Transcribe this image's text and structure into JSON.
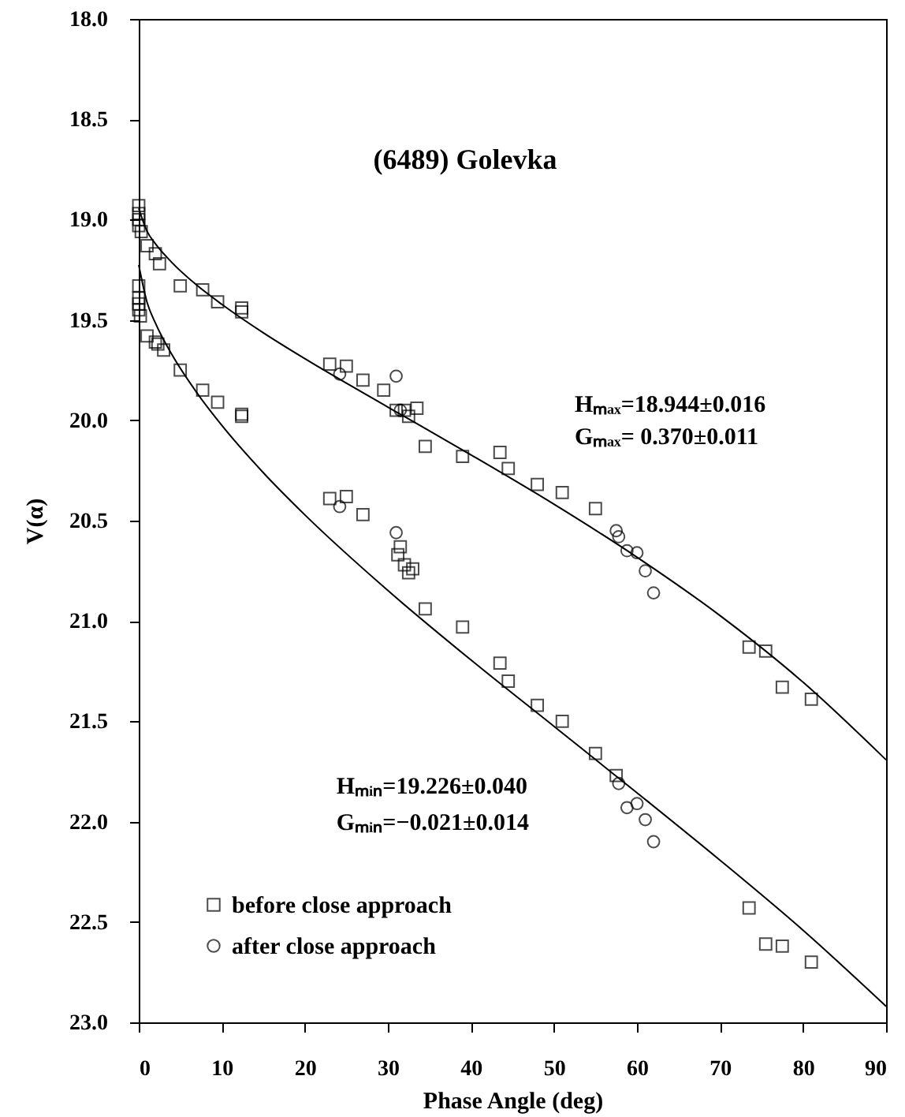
{
  "chart_data": {
    "type": "scatter",
    "title": "(6489) Golevka",
    "xlabel": "Phase Angle (deg)",
    "ylabel": "V(α)",
    "xlim": [
      0,
      90
    ],
    "xticks": [
      0,
      10,
      20,
      30,
      40,
      50,
      60,
      70,
      80,
      90
    ],
    "ylim": [
      23,
      18
    ],
    "yticks": [
      {
        "value": 18,
        "label": "18.0"
      },
      {
        "value": 18.5,
        "label": "18.5"
      },
      {
        "value": 19,
        "label": "19.0"
      },
      {
        "value": 19.5,
        "label": "19.5"
      },
      {
        "value": 20,
        "label": "20.0"
      },
      {
        "value": 20.5,
        "label": "20.5"
      },
      {
        "value": 21,
        "label": "21.0"
      },
      {
        "value": 21.5,
        "label": "21.5"
      },
      {
        "value": 22,
        "label": "22.0"
      },
      {
        "value": 22.5,
        "label": "22.5"
      },
      {
        "value": 23,
        "label": "23.0"
      }
    ],
    "legend": "bottom left",
    "annotations": [
      "Hₘₐₓ=18.944±0.016",
      "Gₘₐₓ= 0.370±0.011",
      "Hₘᵢₙ=19.226±0.040",
      "Gₘᵢₙ=−0.021±0.014"
    ],
    "series": [
      {
        "name": "before close approach",
        "marker": "square",
        "color": "#000000",
        "x": [
          0,
          0,
          0,
          0,
          0.3,
          1,
          2,
          2.5,
          5,
          7.7,
          9.5,
          12.4,
          12.4,
          23,
          25,
          27,
          29.5,
          31,
          32,
          32.5,
          33.5,
          34.5,
          39,
          43.5,
          44.5,
          48,
          51,
          55,
          73.5,
          75.5,
          77.5,
          81,
          0,
          0,
          0,
          0,
          0.2,
          1,
          2,
          2.3,
          3,
          5,
          7.7,
          9.5,
          12.4,
          12.4,
          23,
          25,
          27,
          31.5,
          31.2,
          32,
          33,
          32.5,
          34.5,
          39,
          43.5,
          44.5,
          48,
          51,
          55,
          57.5,
          73.5,
          75.5,
          77.5,
          81
        ],
        "values": [
          18.93,
          18.97,
          19.0,
          19.03,
          19.06,
          19.13,
          19.17,
          19.22,
          19.33,
          19.35,
          19.41,
          19.44,
          19.46,
          19.72,
          19.73,
          19.8,
          19.85,
          19.95,
          19.95,
          19.98,
          19.94,
          20.13,
          20.18,
          20.16,
          20.24,
          20.32,
          20.36,
          20.44,
          21.13,
          21.15,
          21.33,
          21.39,
          19.33,
          19.39,
          19.42,
          19.45,
          19.48,
          19.58,
          19.61,
          19.62,
          19.65,
          19.75,
          19.85,
          19.91,
          19.97,
          19.98,
          20.39,
          20.38,
          20.47,
          20.63,
          20.67,
          20.72,
          20.74,
          20.76,
          20.94,
          21.03,
          21.21,
          21.3,
          21.42,
          21.5,
          21.66,
          21.77,
          22.43,
          22.61,
          22.62,
          22.7
        ]
      },
      {
        "name": "after close approach",
        "marker": "circle",
        "color": "#000000",
        "x": [
          24.2,
          31,
          31.5,
          57.5,
          57.8,
          58.8,
          60,
          61,
          62,
          24.2,
          31,
          57.8,
          58.8,
          60,
          61,
          62
        ],
        "values": [
          19.77,
          19.78,
          19.95,
          20.55,
          20.58,
          20.65,
          20.66,
          20.75,
          20.86,
          20.43,
          20.56,
          21.81,
          21.93,
          21.91,
          21.99,
          22.1
        ]
      },
      {
        "type": "line",
        "color": "#000000",
        "x": [
          0,
          1,
          2,
          4,
          7,
          10,
          15,
          20,
          30,
          40,
          50,
          60,
          70,
          80,
          90
        ],
        "values": [
          18.944,
          19.058,
          19.12,
          19.214,
          19.327,
          19.422,
          19.564,
          19.693,
          19.934,
          20.172,
          20.418,
          20.682,
          20.973,
          21.305,
          21.692
        ]
      },
      {
        "type": "line",
        "color": "#000000",
        "x": [
          0,
          1,
          2,
          4,
          7,
          10,
          15,
          20,
          30,
          40,
          50,
          60,
          70,
          80,
          90
        ],
        "values": [
          19.226,
          19.412,
          19.515,
          19.673,
          19.863,
          20.025,
          20.261,
          20.471,
          20.848,
          21.194,
          21.525,
          21.856,
          22.192,
          22.541,
          22.92
        ]
      }
    ]
  }
}
